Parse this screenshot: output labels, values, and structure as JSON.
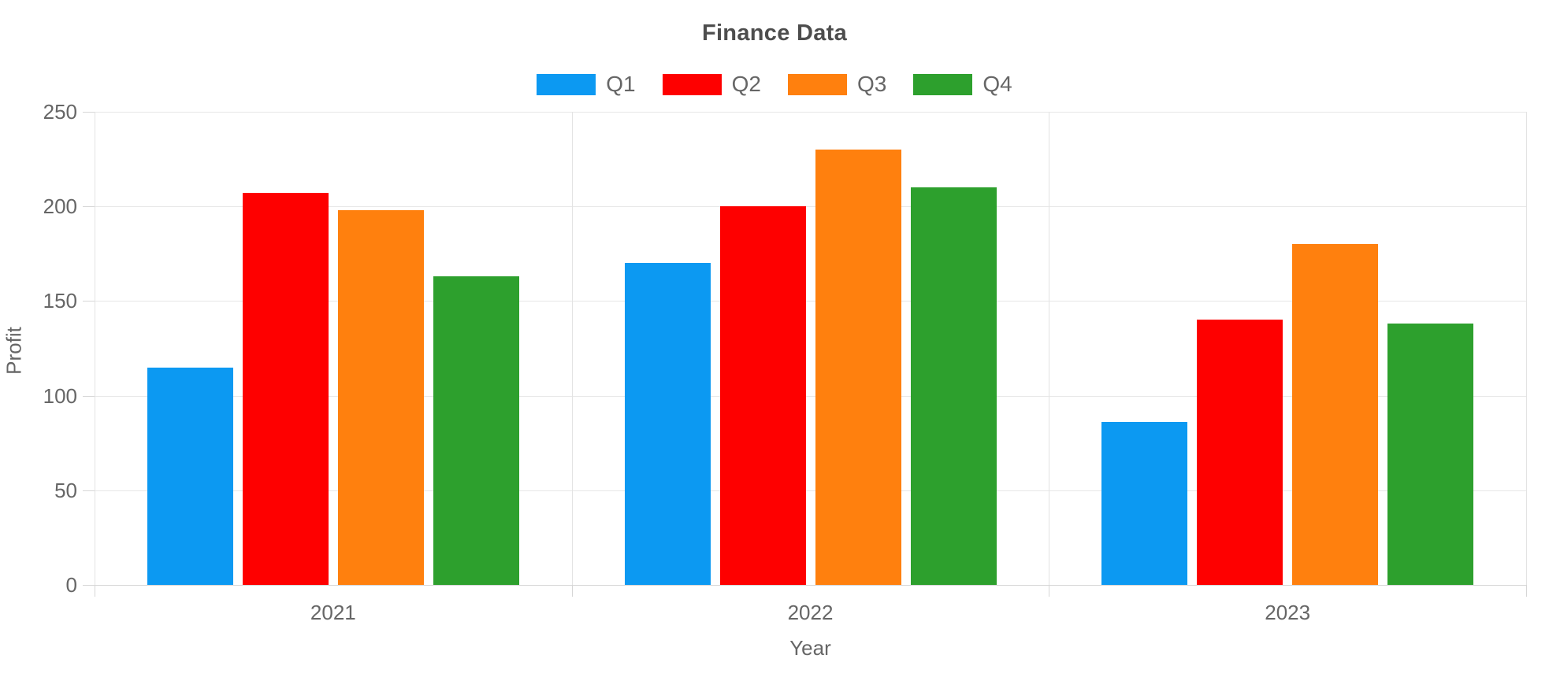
{
  "chart_data": {
    "type": "bar",
    "title": "Finance Data",
    "xlabel": "Year",
    "ylabel": "Profit",
    "categories": [
      "2021",
      "2022",
      "2023"
    ],
    "series": [
      {
        "name": "Q1",
        "color": "#0C99F2",
        "values": [
          115,
          170,
          86
        ]
      },
      {
        "name": "Q2",
        "color": "#FE0000",
        "values": [
          207,
          200,
          140
        ]
      },
      {
        "name": "Q3",
        "color": "#FF800E",
        "values": [
          198,
          230,
          180
        ]
      },
      {
        "name": "Q4",
        "color": "#2DA02D",
        "values": [
          163,
          210,
          138
        ]
      }
    ],
    "ylim": [
      0,
      250
    ],
    "yticks": [
      0,
      50,
      100,
      150,
      200,
      250
    ],
    "grid": true,
    "legend_position": "top"
  },
  "style": {
    "background": "#ffffff",
    "grid_color": "#e7e7e7",
    "axis_color": "#d6d6d6",
    "text_color": "#666666",
    "title_color": "#4d4d4d"
  }
}
